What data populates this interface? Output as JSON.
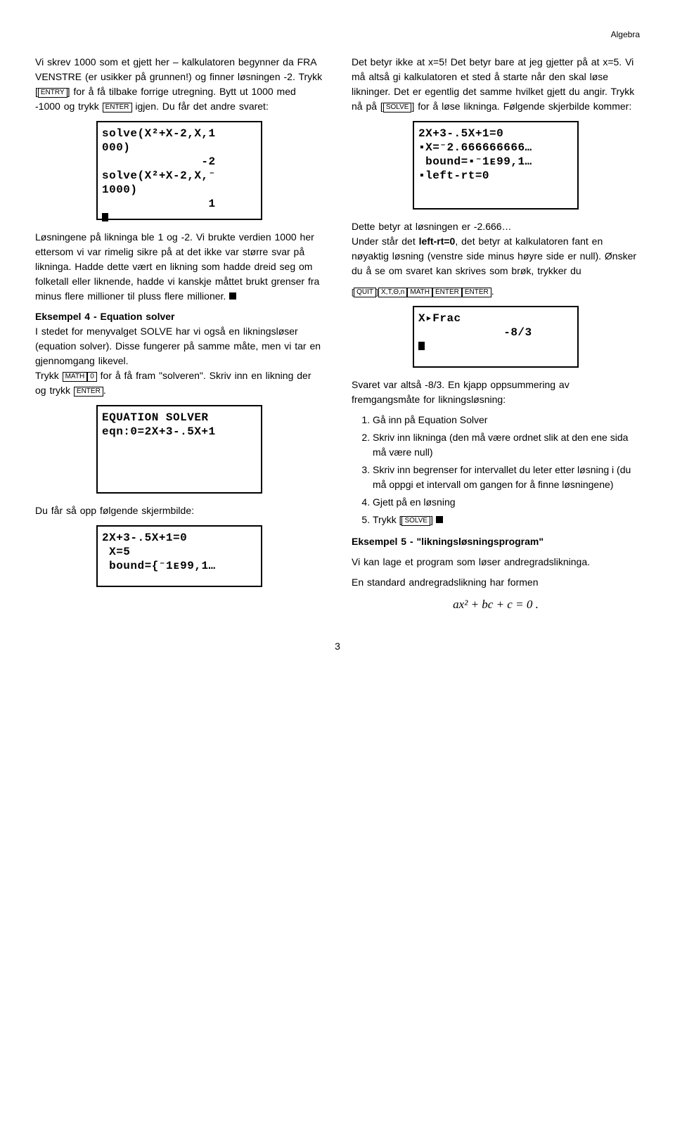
{
  "header": {
    "label": "Algebra"
  },
  "page_number": "3",
  "keys": {
    "entry": "ENTRY",
    "enter": "ENTER",
    "solve": "SOLVE",
    "math": "MATH",
    "zero": "0",
    "quit": "QUIT",
    "xtn": "X,T,Θ,n"
  },
  "left": {
    "p1a": "Vi skrev 1000 som et gjett her – kalkulatoren begynner da FRA VENSTRE (er usikker på grunnen!) og finner løsningen -2. Trykk [",
    "p1b": "] for å få tilbake forrige utregning. Bytt ut 1000 med -1000 og trykk ",
    "p1c": " igjen. Du får det andre svaret:",
    "screen1": "solve(X²+X-2,X,1\n000)\n              -2\nsolve(X²+X-2,X,⁻\n1000)\n               1\n",
    "p2": "Løsningene på likninga ble 1 og -2. Vi brukte verdien 1000 her ettersom vi var rimelig sikre på at det ikke var større svar på likninga. Hadde dette vært en likning som hadde dreid seg om folketall eller liknende, hadde vi kanskje måttet brukt grenser fra minus flere millioner til pluss flere millioner. ",
    "ex4_title": "Eksempel 4 - Equation solver",
    "ex4a": "I stedet for menyvalget SOLVE har vi også en likningsløser (equation solver). Disse fungerer på samme måte, men vi tar en gjennomgang likevel.",
    "ex4b_pre": "Trykk ",
    "ex4b_post": " for å få fram \"solveren\". Skriv inn en likning der og trykk ",
    "ex4b_end": ".",
    "screen2": "EQUATION SOLVER\neqn:0=2X+3-.5X+1",
    "p3": "Du får så opp følgende skjermbilde:",
    "screen3": "2X+3-.5X+1=0\n X=5\n bound={⁻1ᴇ99,1…"
  },
  "right": {
    "p1a": "Det betyr ikke at x=5! Det betyr bare at jeg gjetter på at x=5. Vi må altså gi kalkulatoren et sted å starte når den skal løse likninger. Det er egentlig det samme hvilket gjett du angir. Trykk nå på [",
    "p1b": "] for å løse likninga. Følgende skjerbilde kommer:",
    "screen1": "2X+3-.5X+1=0\n▪X=⁻2.666666666…\n bound=▪⁻1ᴇ99,1…\n▪left-rt=0",
    "p2a": "Dette betyr at løsningen er -2.666…",
    "p2b_pre": "Under står det ",
    "p2b_bold": "left-rt=0",
    "p2b_post": ", det betyr at kalkulatoren fant en nøyaktig løsning (venstre side minus høyre side er null). Ønsker du å se om svaret kan skrives som brøk, trykker du",
    "screen2": "X▸Frac\n            -8/3\n",
    "p3": "Svaret var altså -8/3. En kjapp oppsummering av fremgangsmåte for likningsløsning:",
    "steps": [
      "Gå inn på Equation Solver",
      "Skriv inn likninga (den må være ordnet slik at den ene sida må være null)",
      "Skriv inn begrenser for intervallet du leter etter løsning i (du må oppgi et intervall om gangen for å finne løsningene)",
      "Gjett på en løsning"
    ],
    "step5_pre": "Trykk [",
    "step5_post": "] ",
    "ex5_title": "Eksempel 5 - \"likningsløsningsprogram\"",
    "ex5_p1": "Vi kan lage et program som løser andregradslikninga.",
    "ex5_p2": "En standard andregradslikning har formen",
    "equation": "ax² + bc + c = 0 ."
  }
}
